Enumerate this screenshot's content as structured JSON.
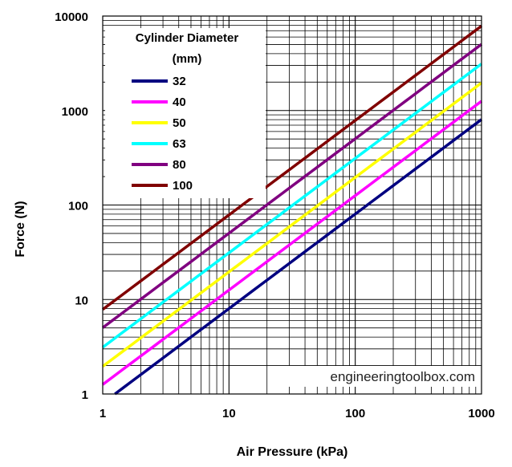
{
  "chart_data": {
    "type": "line",
    "title": "",
    "xlabel": "Air Pressure (kPa)",
    "ylabel": "Force (N)",
    "xscale": "log",
    "yscale": "log",
    "xlim": [
      1,
      1000
    ],
    "ylim": [
      1,
      10000
    ],
    "x_ticks": [
      "1",
      "10",
      "100",
      "1000"
    ],
    "y_ticks": [
      "1",
      "10",
      "100",
      "1000",
      "10000"
    ],
    "grid": true,
    "legend_title_line1": "Cylinder Diameter",
    "legend_title_line2": "(mm)",
    "legend_position": "top-left",
    "watermark": "engineeringtoolbox.com",
    "series": [
      {
        "name": "32",
        "color": "#000080",
        "x": [
          1,
          1000
        ],
        "y": [
          0.8,
          804
        ]
      },
      {
        "name": "40",
        "color": "#ff00ff",
        "x": [
          1,
          1000
        ],
        "y": [
          1.26,
          1257
        ]
      },
      {
        "name": "50",
        "color": "#ffff00",
        "x": [
          1,
          1000
        ],
        "y": [
          1.96,
          1963
        ]
      },
      {
        "name": "63",
        "color": "#00ffff",
        "x": [
          1,
          1000
        ],
        "y": [
          3.12,
          3117
        ]
      },
      {
        "name": "80",
        "color": "#800080",
        "x": [
          1,
          1000
        ],
        "y": [
          5.03,
          5027
        ]
      },
      {
        "name": "100",
        "color": "#800000",
        "x": [
          1,
          1000
        ],
        "y": [
          7.85,
          7854
        ]
      }
    ]
  }
}
